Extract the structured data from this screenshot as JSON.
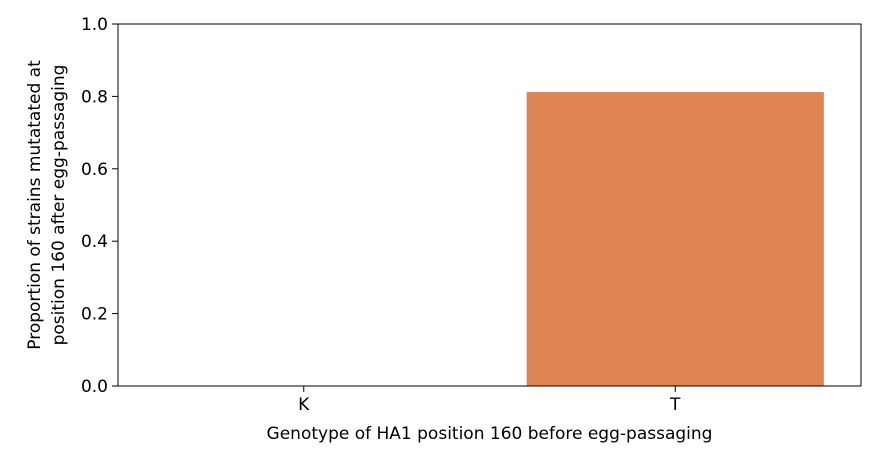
{
  "chart_data": {
    "type": "bar",
    "title": "",
    "categories": [
      "K",
      "T"
    ],
    "values": [
      0.0,
      0.812
    ],
    "bar_colors": [
      "#dd8452",
      "#dd8452"
    ],
    "xlabel": "Genotype of HA1 position 160 before egg-passaging",
    "ylabel_lines": [
      "Proportion of strains mutatated at",
      "position 160 after egg-passaging"
    ],
    "ylim": [
      0.0,
      1.0
    ],
    "yticks": [
      0.0,
      0.2,
      0.4,
      0.6,
      0.8,
      1.0
    ],
    "ytick_labels": [
      "0.0",
      "0.2",
      "0.4",
      "0.6",
      "0.8",
      "1.0"
    ],
    "grid": false,
    "legend": "none"
  }
}
